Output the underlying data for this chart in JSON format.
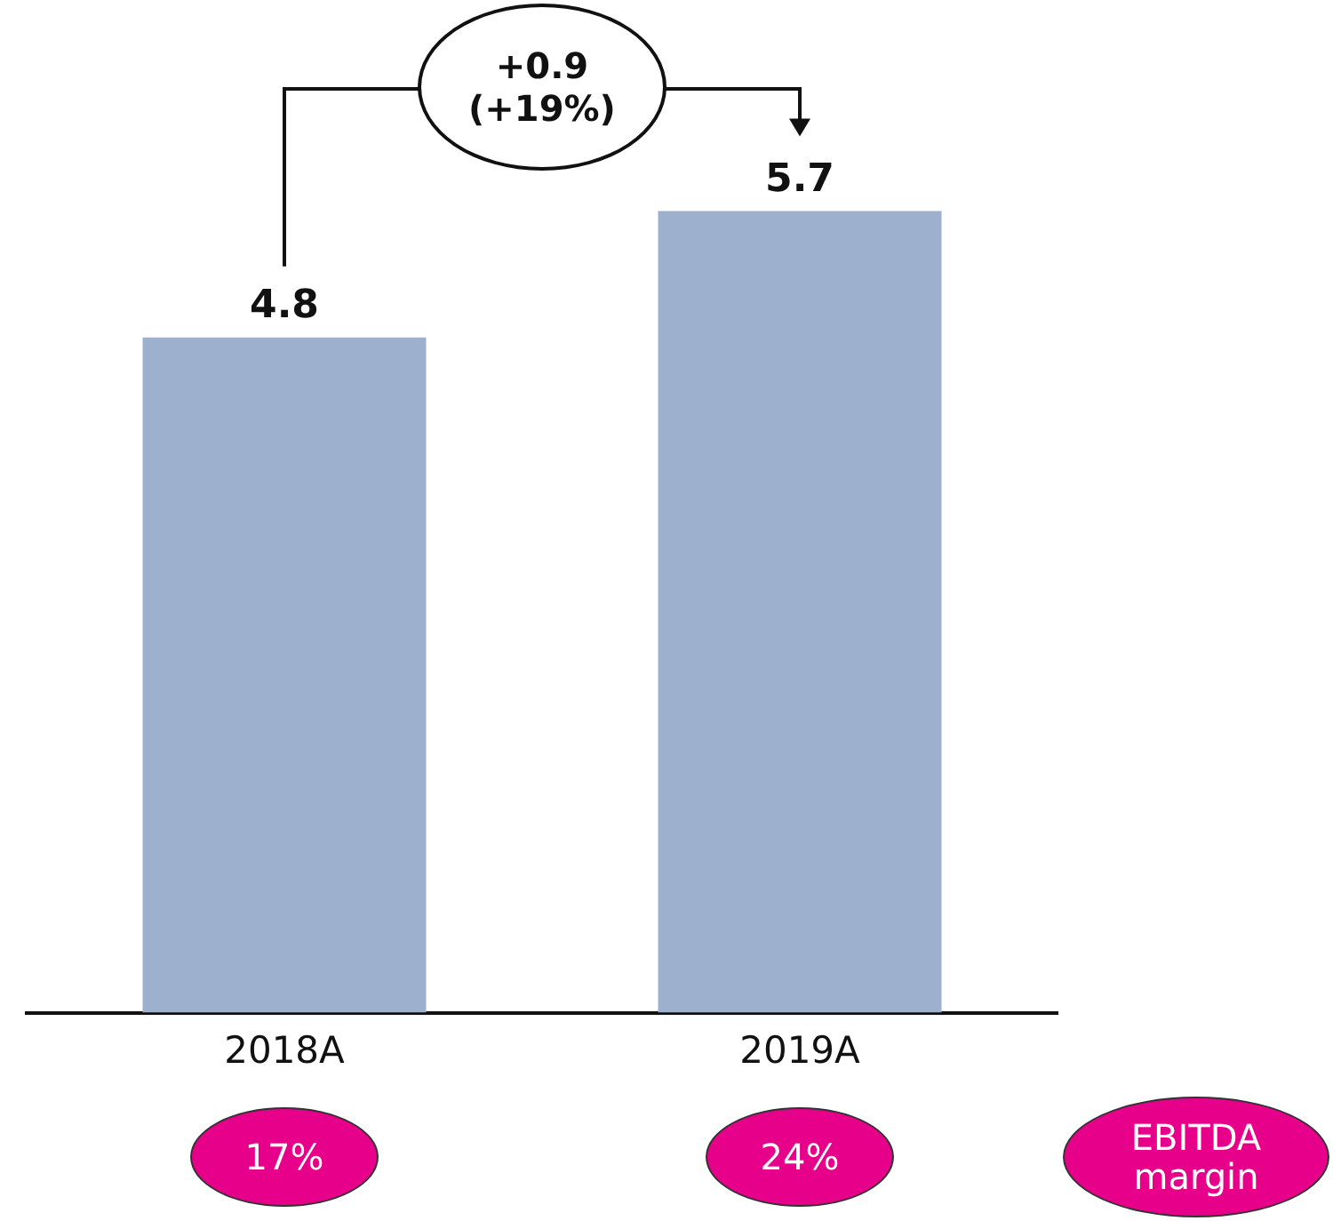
{
  "chart_data": {
    "type": "bar",
    "categories": [
      "2018A",
      "2019A"
    ],
    "values": [
      4.8,
      5.7
    ],
    "color": "#9db0ce",
    "ylim": [
      0,
      7.2
    ],
    "tick_labels": "x",
    "grid": false,
    "legend": false,
    "data_labels": true,
    "annotations": [
      "+0.9\n(+19%)",
      "17%",
      "24%",
      "EBITDA\nmargin"
    ]
  }
}
